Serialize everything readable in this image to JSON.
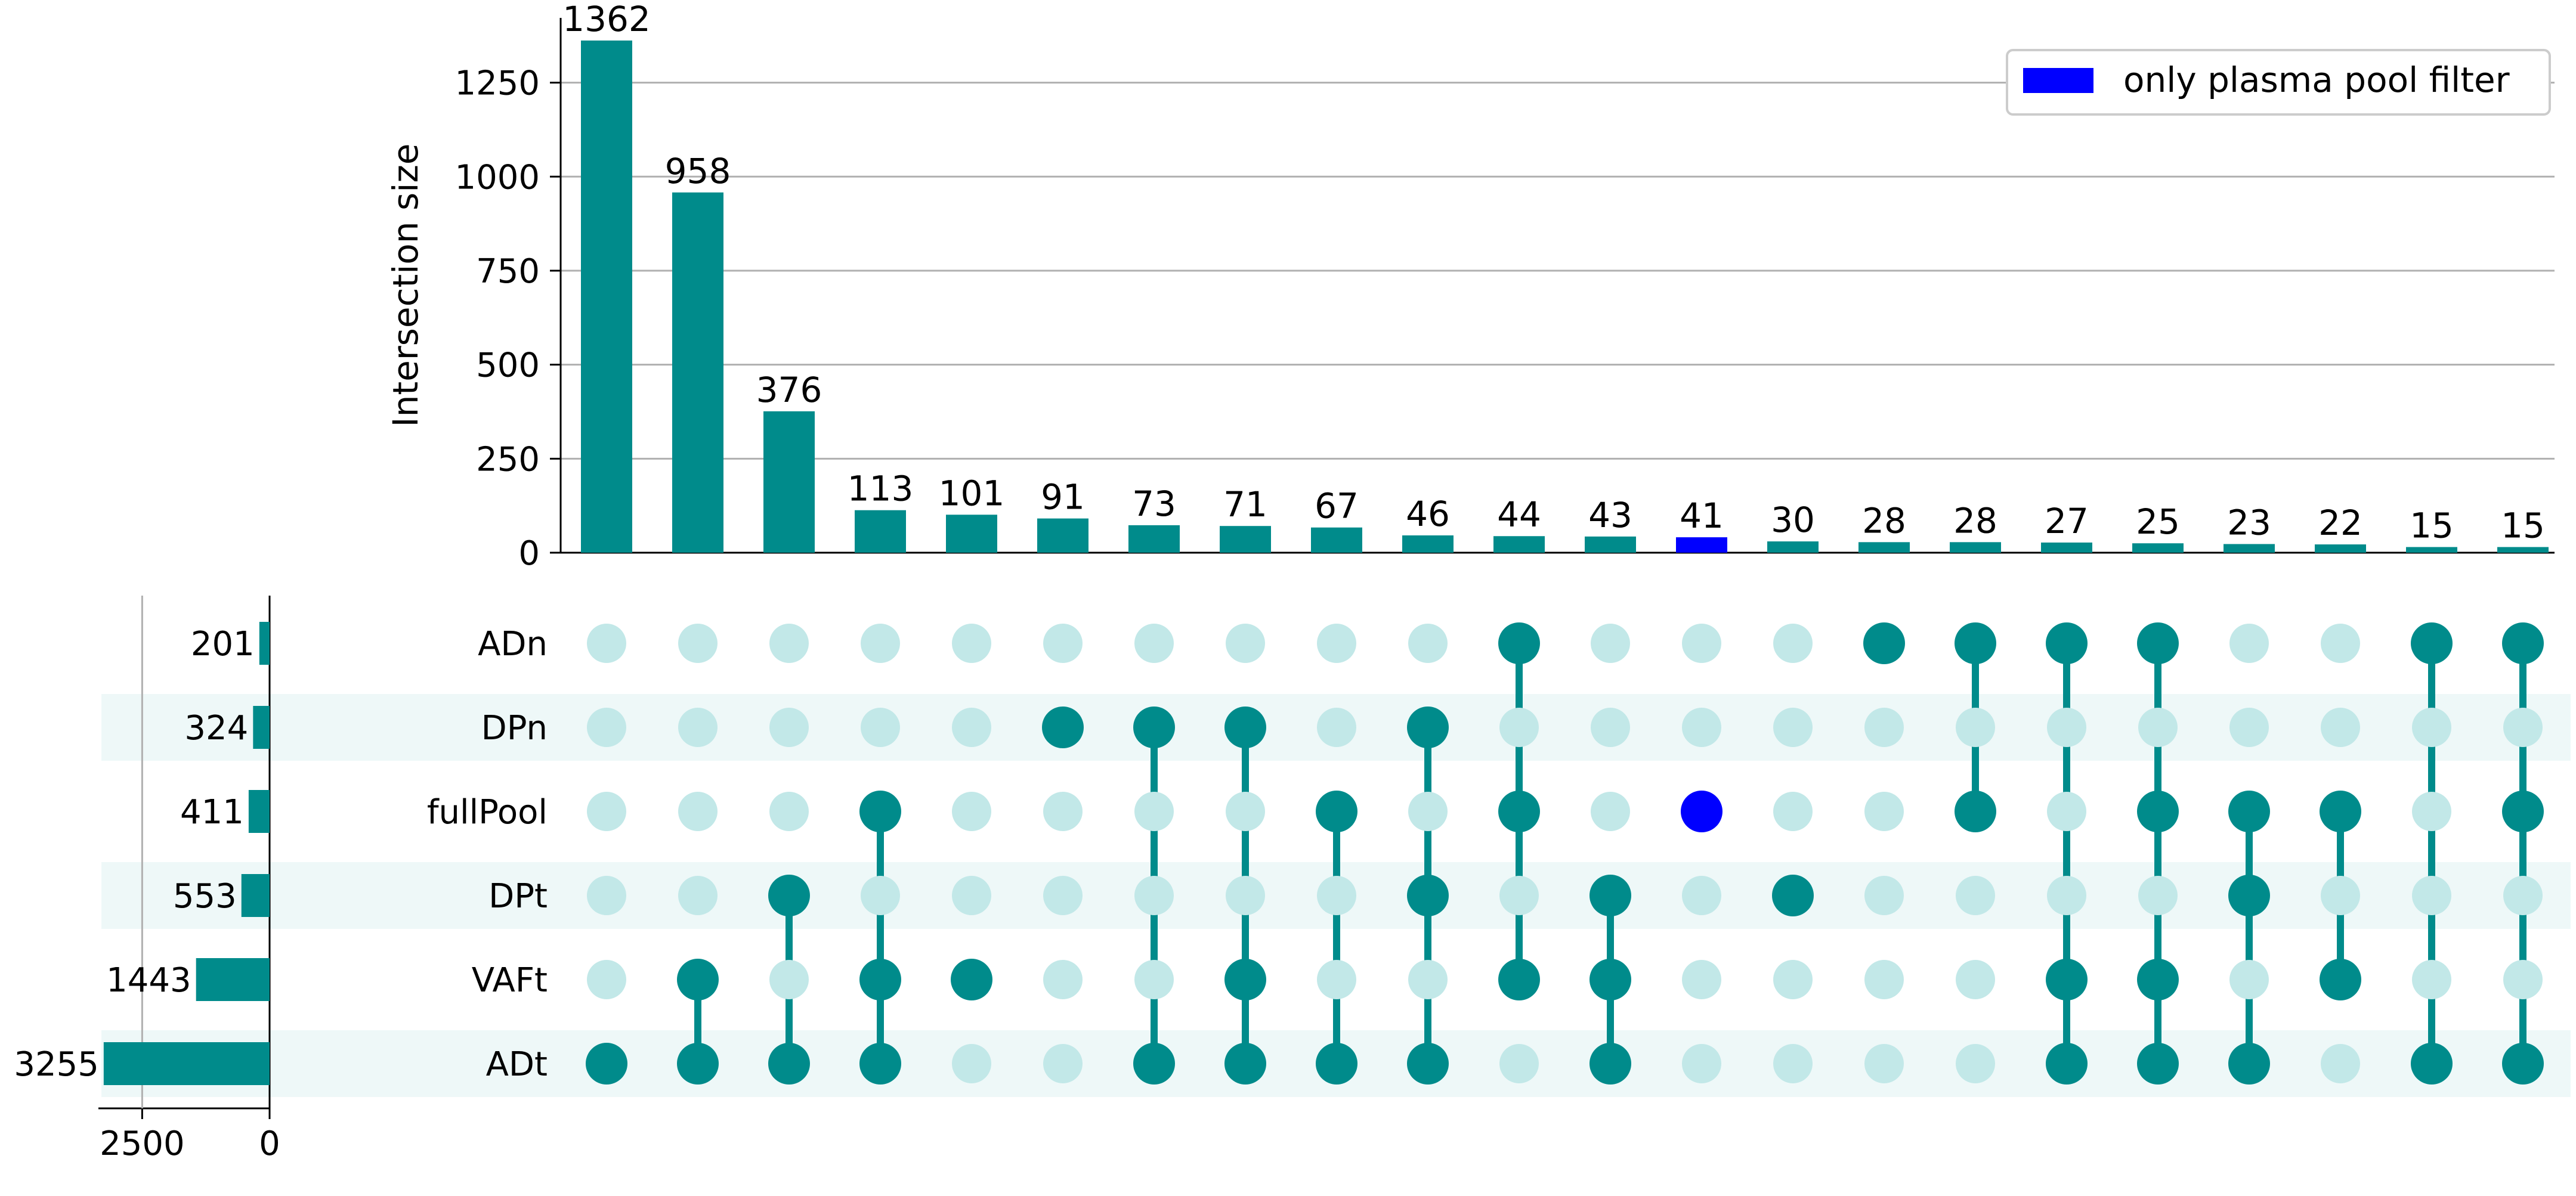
{
  "chart_data": {
    "type": "upset",
    "colors": {
      "main": "#008b8b",
      "highlight": "#0000ff",
      "inactive_dot": "#c2e8e8",
      "row_shade": "#eef8f8"
    },
    "intersection_axis": {
      "ylabel": "Intersection size",
      "ylim": [
        0,
        1400
      ],
      "ticks": [
        0,
        250,
        500,
        750,
        1000,
        1250
      ]
    },
    "set_size_axis": {
      "xlim": [
        3300,
        0
      ],
      "ticks": [
        2500,
        0
      ]
    },
    "sets": [
      "ADn",
      "DPn",
      "fullPool",
      "DPt",
      "VAFt",
      "ADt"
    ],
    "set_sizes": [
      201,
      324,
      411,
      553,
      1443,
      3255
    ],
    "intersections": [
      {
        "value": 1362,
        "members": [
          "ADt"
        ],
        "highlight": false
      },
      {
        "value": 958,
        "members": [
          "VAFt",
          "ADt"
        ],
        "highlight": false
      },
      {
        "value": 376,
        "members": [
          "DPt",
          "ADt"
        ],
        "highlight": false
      },
      {
        "value": 113,
        "members": [
          "fullPool",
          "VAFt",
          "ADt"
        ],
        "highlight": false
      },
      {
        "value": 101,
        "members": [
          "VAFt"
        ],
        "highlight": false
      },
      {
        "value": 91,
        "members": [
          "DPn"
        ],
        "highlight": false
      },
      {
        "value": 73,
        "members": [
          "DPn",
          "ADt"
        ],
        "highlight": false
      },
      {
        "value": 71,
        "members": [
          "DPn",
          "VAFt",
          "ADt"
        ],
        "highlight": false
      },
      {
        "value": 67,
        "members": [
          "fullPool",
          "ADt"
        ],
        "highlight": false
      },
      {
        "value": 46,
        "members": [
          "DPn",
          "DPt",
          "ADt"
        ],
        "highlight": false
      },
      {
        "value": 44,
        "members": [
          "ADn",
          "fullPool",
          "VAFt"
        ],
        "highlight": false
      },
      {
        "value": 43,
        "members": [
          "DPt",
          "VAFt",
          "ADt"
        ],
        "highlight": false
      },
      {
        "value": 41,
        "members": [
          "fullPool"
        ],
        "highlight": true
      },
      {
        "value": 30,
        "members": [
          "DPt"
        ],
        "highlight": false
      },
      {
        "value": 28,
        "members": [
          "ADn"
        ],
        "highlight": false
      },
      {
        "value": 28,
        "members": [
          "ADn",
          "fullPool"
        ],
        "highlight": false
      },
      {
        "value": 27,
        "members": [
          "ADn",
          "VAFt",
          "ADt"
        ],
        "highlight": false
      },
      {
        "value": 25,
        "members": [
          "ADn",
          "fullPool",
          "VAFt",
          "ADt"
        ],
        "highlight": false
      },
      {
        "value": 23,
        "members": [
          "fullPool",
          "DPt",
          "ADt"
        ],
        "highlight": false
      },
      {
        "value": 22,
        "members": [
          "fullPool",
          "VAFt"
        ],
        "highlight": false
      },
      {
        "value": 15,
        "members": [
          "ADn",
          "ADt"
        ],
        "highlight": false
      },
      {
        "value": 15,
        "members": [
          "ADn",
          "fullPool",
          "ADt"
        ],
        "highlight": false
      }
    ],
    "legend": {
      "label": "only plasma pool filter",
      "placement": "top-right"
    }
  }
}
